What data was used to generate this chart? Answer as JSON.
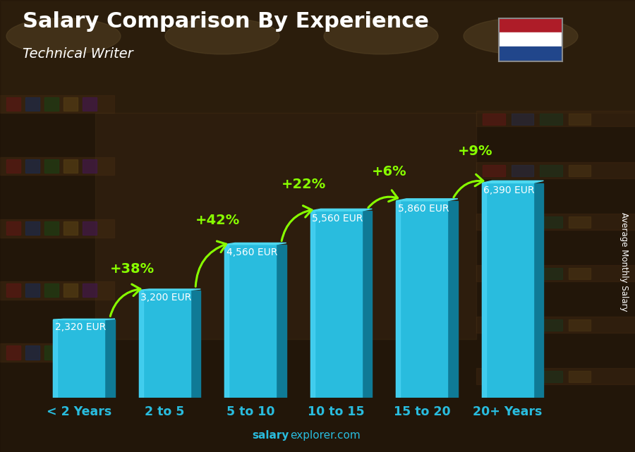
{
  "categories": [
    "< 2 Years",
    "2 to 5",
    "5 to 10",
    "10 to 15",
    "15 to 20",
    "20+ Years"
  ],
  "values": [
    2320,
    3200,
    4560,
    5560,
    5860,
    6390
  ],
  "value_labels": [
    "2,320 EUR",
    "3,200 EUR",
    "4,560 EUR",
    "5,560 EUR",
    "5,860 EUR",
    "6,390 EUR"
  ],
  "pct_labels": [
    "+38%",
    "+42%",
    "+22%",
    "+6%",
    "+9%"
  ],
  "bar_color_face": "#29BCDE",
  "bar_color_left": "#1A9EC0",
  "bar_color_right": "#0F7A96",
  "bar_color_top": "#4DD8F0",
  "title": "Salary Comparison By Experience",
  "subtitle": "Technical Writer",
  "ylabel": "Average Monthly Salary",
  "source_bold": "salary",
  "source_normal": "explorer.com",
  "bg_color": "#3d2b1a",
  "title_color": "#ffffff",
  "subtitle_color": "#ffffff",
  "label_color": "#ffffff",
  "pct_color": "#88ff00",
  "source_color": "#29BCDE",
  "ylim": [
    0,
    7800
  ],
  "flag_red": "#AE1C28",
  "flag_white": "#FFFFFF",
  "flag_blue": "#21468B",
  "tick_color": "#29BCDE"
}
